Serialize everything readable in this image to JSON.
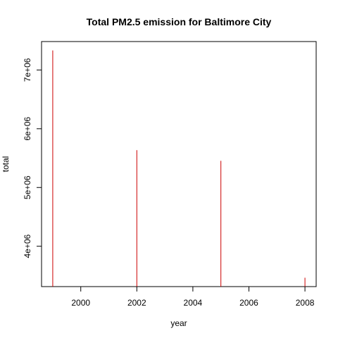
{
  "chart_data": {
    "type": "bar",
    "style": "histogram-spikes",
    "title": "Total PM2.5 emission for Baltimore City",
    "xlabel": "year",
    "ylabel": "total",
    "x": [
      1999,
      2002,
      2005,
      2008
    ],
    "values": [
      7332967,
      5635780,
      5454703,
      3464206
    ],
    "xlim": [
      1998.6,
      2008.4
    ],
    "ylim": [
      3313266,
      7483907
    ],
    "xticks": [
      2000,
      2002,
      2004,
      2006,
      2008
    ],
    "xtick_labels": [
      "2000",
      "2002",
      "2004",
      "2006",
      "2008"
    ],
    "yticks": [
      4000000,
      5000000,
      6000000,
      7000000
    ],
    "ytick_labels": [
      "4e+06",
      "5e+06",
      "6e+06",
      "7e+06"
    ],
    "color": "#cc0000",
    "grid": false,
    "legend": "none"
  }
}
